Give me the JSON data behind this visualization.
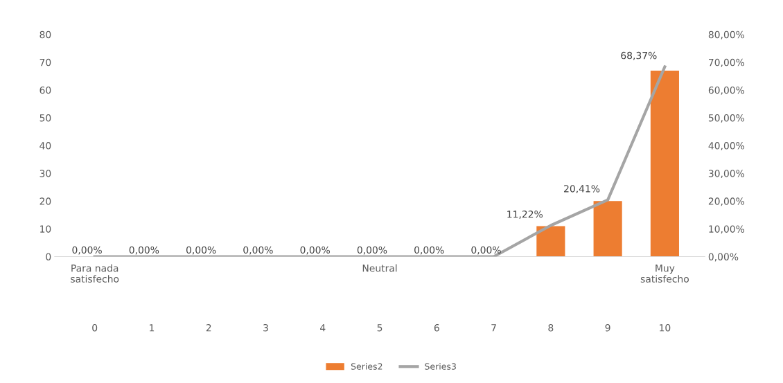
{
  "chart_data": {
    "type": "bar",
    "categories": [
      "0",
      "1",
      "2",
      "3",
      "4",
      "5",
      "6",
      "7",
      "8",
      "9",
      "10"
    ],
    "series": [
      {
        "name": "Series2",
        "color": "#ed7d31",
        "values": [
          0,
          0,
          0,
          0,
          0,
          0,
          0,
          0,
          11,
          20,
          67
        ]
      },
      {
        "name": "Series3",
        "type": "line",
        "axis": "y2",
        "color": "#a5a5a5",
        "values": [
          0,
          0,
          0,
          0,
          0,
          0,
          0,
          0,
          11.22,
          20.41,
          68.37
        ],
        "value_labels": [
          "0,00%",
          "0,00%",
          "0,00%",
          "0,00%",
          "0,00%",
          "0,00%",
          "0,00%",
          "0,00%",
          "11,22%",
          "20,41%",
          "68,37%"
        ]
      }
    ],
    "ylim": [
      0,
      80
    ],
    "yticks": [
      0,
      10,
      20,
      30,
      40,
      50,
      60,
      70,
      80
    ],
    "y2lim": [
      0,
      80
    ],
    "y2ticks": [
      {
        "value": 0,
        "label": "0,00%"
      },
      {
        "value": 10,
        "label": "10,00%"
      },
      {
        "value": 20,
        "label": "20,00%"
      },
      {
        "value": 30,
        "label": "30,00%"
      },
      {
        "value": 40,
        "label": "40,00%"
      },
      {
        "value": 50,
        "label": "50,00%"
      },
      {
        "value": 60,
        "label": "60,00%"
      },
      {
        "value": 70,
        "label": "70,00%"
      },
      {
        "value": 80,
        "label": "80,00%"
      }
    ],
    "annotations": [
      {
        "text": "Para nada\nsatisfecho",
        "x": "0",
        "y": 0
      },
      {
        "text": "Neutral",
        "x": "5",
        "y": 0
      },
      {
        "text": "Muy\nsatisfecho",
        "x": "10",
        "y": 0
      }
    ],
    "grid": false,
    "legend": "bottom",
    "marker": "none",
    "line_style": "solid"
  }
}
